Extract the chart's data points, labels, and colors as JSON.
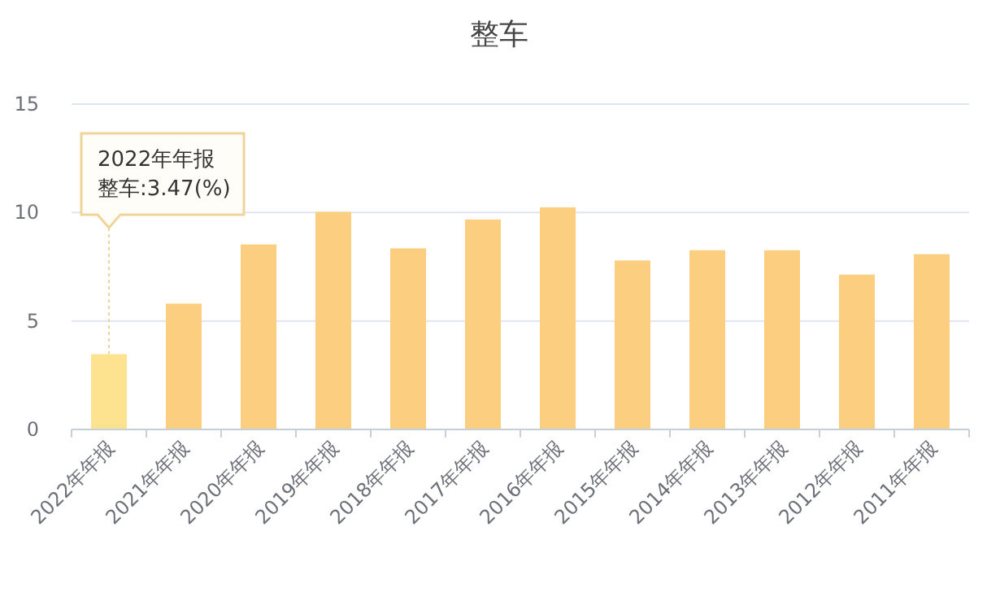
{
  "chart_data": {
    "type": "bar",
    "title": "整车",
    "categories": [
      "2022年年报",
      "2021年年报",
      "2020年年报",
      "2019年年报",
      "2018年年报",
      "2017年年报",
      "2016年年报",
      "2015年年报",
      "2014年年报",
      "2013年年报",
      "2012年年报",
      "2011年年报"
    ],
    "values": [
      3.47,
      5.8,
      8.53,
      10.03,
      8.35,
      9.68,
      10.24,
      7.79,
      8.26,
      8.26,
      7.14,
      8.08
    ],
    "colors": [
      "#fde28f",
      "#fbcf7f",
      "#fbcf7f",
      "#fbcf7f",
      "#fbcf7f",
      "#fbcf7f",
      "#fbcf7f",
      "#fbcf7f",
      "#fbcf7f",
      "#fbcf7f",
      "#fbcf7f",
      "#fbcf7f"
    ],
    "ylim": [
      0,
      15
    ],
    "yticks": [
      0,
      5,
      10,
      15
    ],
    "grid": "y",
    "annotations": [
      "2022年年报",
      {
        "text": "整车:3.47(%)",
        "x": "2022年年报",
        "y": 3.47
      }
    ]
  }
}
